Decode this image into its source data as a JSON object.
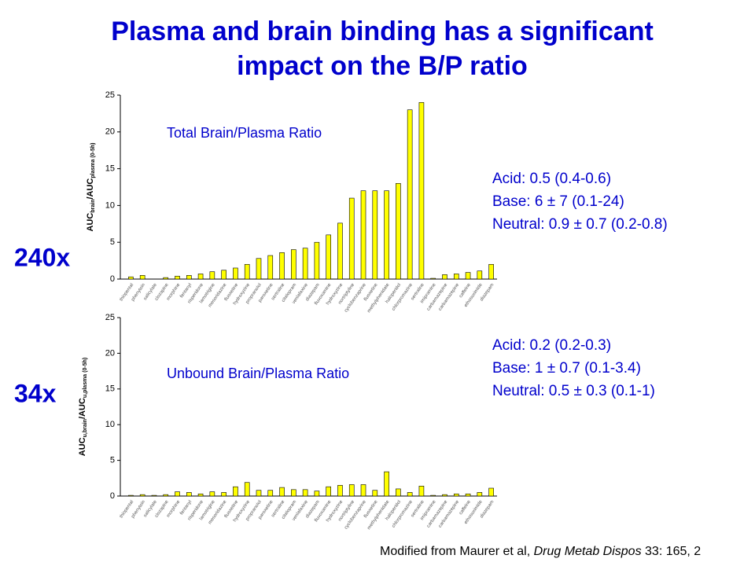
{
  "title": [
    "Plasma and brain binding has a significant",
    "impact on the B/P ratio"
  ],
  "footnote": [
    "Modified from Maurer et al, ",
    "Drug Metab Dispos",
    " 33: 165, 2"
  ],
  "chart_data": [
    {
      "type": "bar",
      "title": "Total Brain/Plasma Ratio",
      "fold_label": "240x",
      "y_label": [
        "AUC",
        "brain",
        "/AUC",
        "plasma (0-5h)"
      ],
      "annotations": [
        "Acid: 0.5 (0.4-0.6)",
        "Base: 6 ± 7 (0.1-24)",
        "Neutral: 0.9 ± 0.7 (0.2-0.8)"
      ],
      "categories": [
        "thiopental",
        "phenytoin",
        "salicylate",
        "clozapine",
        "morphine",
        "fentanyl",
        "risperidone",
        "lamotrigine",
        "mesoridazine",
        "fluoxetine",
        "hydroxyzine",
        "propranolol",
        "paroxetine",
        "sertraline",
        "citalopram",
        "venlafaxine",
        "diazepam",
        "fluvoxamine",
        "hydroxyzine",
        "nortriptyline",
        "cyclobenzaprine",
        "fluoxetine",
        "methylphenidate",
        "haloperidol",
        "chlorpromazine",
        "sertraline",
        "imipramine",
        "carbamazepine",
        "carbamazepine",
        "caffeine",
        "ethosuximide",
        "diazepam"
      ],
      "values": [
        0.3,
        0.5,
        0,
        0.2,
        0.4,
        0.5,
        0.7,
        1.0,
        1.2,
        1.5,
        2.0,
        2.8,
        3.2,
        3.6,
        4.0,
        4.2,
        5.0,
        6.0,
        7.6,
        11,
        12,
        12,
        12,
        13,
        23,
        24,
        0.1,
        0.6,
        0.7,
        0.9,
        1.1,
        2.0
      ],
      "color": "#ffff00",
      "ylim": [
        0,
        25
      ],
      "yticks": [
        0,
        5,
        10,
        15,
        20,
        25
      ]
    },
    {
      "type": "bar",
      "title": "Unbound Brain/Plasma Ratio",
      "fold_label": "34x",
      "y_label": [
        "AUC",
        "u,brain",
        "/AUC",
        "u,plasma (0-5h)"
      ],
      "annotations": [
        "Acid: 0.2 (0.2-0.3)",
        "Base: 1 ± 0.7 (0.1-3.4)",
        "Neutral: 0.5 ± 0.3 (0.1-1)"
      ],
      "categories": [
        "thiopental",
        "phenytoin",
        "salicylate",
        "clozapine",
        "morphine",
        "fentanyl",
        "risperidone",
        "lamotrigine",
        "mesoridazine",
        "fluoxetine",
        "hydroxyzine",
        "propranolol",
        "paroxetine",
        "sertraline",
        "citalopram",
        "venlafaxine",
        "diazepam",
        "fluvoxamine",
        "hydroxyzine",
        "nortriptyline",
        "cyclobenzaprine",
        "fluoxetine",
        "methylphenidate",
        "haloperidol",
        "chlorpromazine",
        "sertraline",
        "imipramine",
        "carbamazepine",
        "carbamazepine",
        "caffeine",
        "ethosuximide",
        "diazepam"
      ],
      "values": [
        0.1,
        0.2,
        0.1,
        0.2,
        0.6,
        0.5,
        0.3,
        0.6,
        0.5,
        1.3,
        1.9,
        0.8,
        0.8,
        1.2,
        0.9,
        0.9,
        0.7,
        1.3,
        1.5,
        1.6,
        1.6,
        0.8,
        3.4,
        1.0,
        0.5,
        1.4,
        0.1,
        0.2,
        0.3,
        0.3,
        0.5,
        1.1
      ],
      "color": "#ffff00",
      "ylim": [
        0,
        25
      ],
      "yticks": [
        0,
        5,
        10,
        15,
        20,
        25
      ]
    }
  ]
}
